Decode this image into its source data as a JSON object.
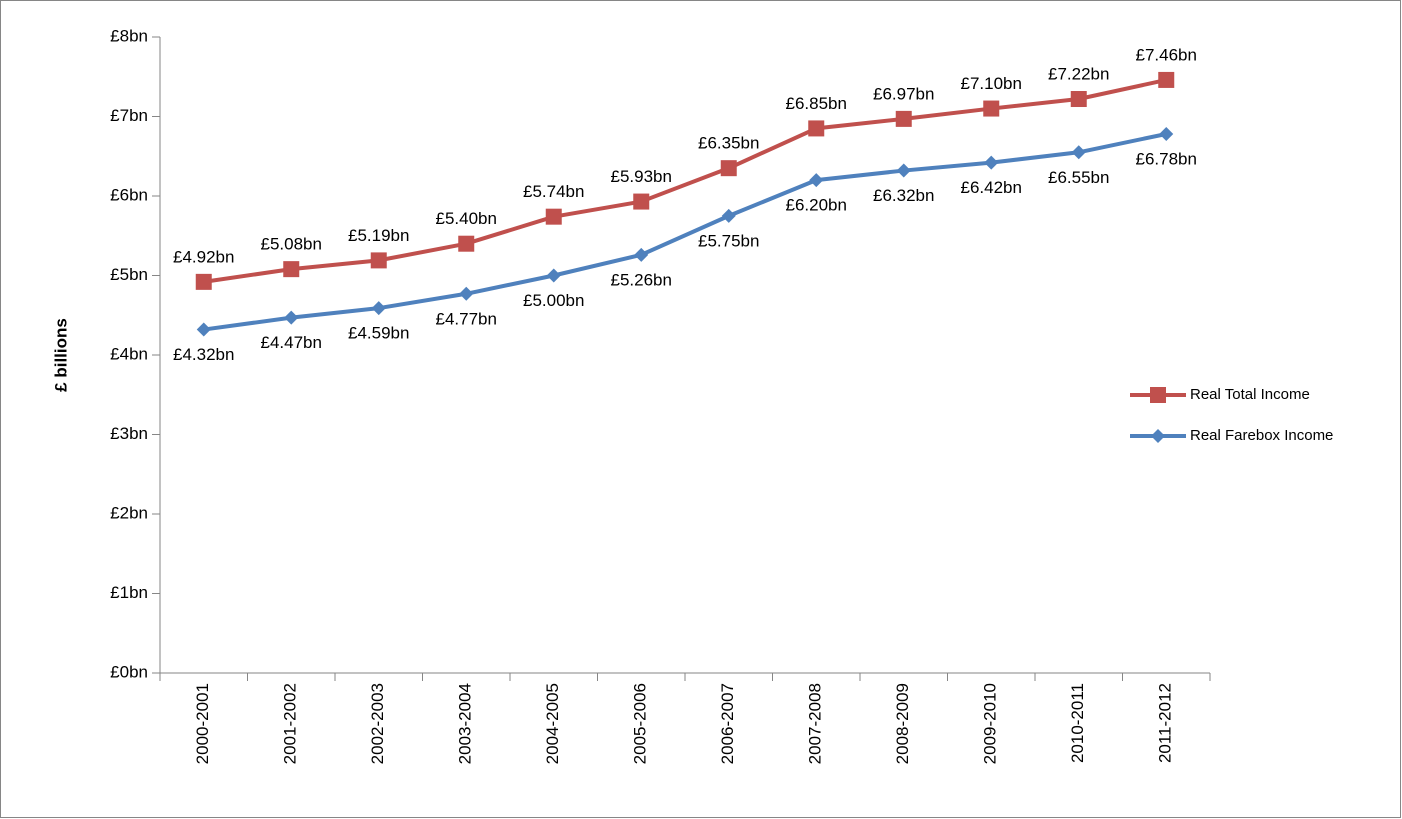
{
  "chart_data": {
    "type": "line",
    "y_label": "£ billions",
    "categories": [
      "2000-2001",
      "2001-2002",
      "2002-2003",
      "2003-2004",
      "2004-2005",
      "2005-2006",
      "2006-2007",
      "2007-2008",
      "2008-2009",
      "2009-2010",
      "2010-2011",
      "2011-2012"
    ],
    "series": [
      {
        "name": "Real Total Income",
        "color": "#c0504d",
        "marker": "square",
        "values": [
          4.92,
          5.08,
          5.19,
          5.4,
          5.74,
          5.93,
          6.35,
          6.85,
          6.97,
          7.1,
          7.22,
          7.46
        ],
        "value_labels": [
          "£4.92bn",
          "£5.08bn",
          "£5.19bn",
          "£5.40bn",
          "£5.74bn",
          "£5.93bn",
          "£6.35bn",
          "£6.85bn",
          "£6.97bn",
          "£7.10bn",
          "£7.22bn",
          "£7.46bn"
        ]
      },
      {
        "name": "Real Farebox Income",
        "color": "#4f81bd",
        "marker": "diamond",
        "values": [
          4.32,
          4.47,
          4.59,
          4.77,
          5.0,
          5.26,
          5.75,
          6.2,
          6.32,
          6.42,
          6.55,
          6.78
        ],
        "value_labels": [
          "£4.32bn",
          "£4.47bn",
          "£4.59bn",
          "£4.77bn",
          "£5.00bn",
          "£5.26bn",
          "£5.75bn",
          "£6.20bn",
          "£6.32bn",
          "£6.42bn",
          "£6.55bn",
          "£6.78bn"
        ]
      }
    ],
    "ylim": [
      0,
      8
    ],
    "yticks": [
      {
        "value": 0,
        "label": "£0bn"
      },
      {
        "value": 1,
        "label": "£1bn"
      },
      {
        "value": 2,
        "label": "£2bn"
      },
      {
        "value": 3,
        "label": "£3bn"
      },
      {
        "value": 4,
        "label": "£4bn"
      },
      {
        "value": 5,
        "label": "£5bn"
      },
      {
        "value": 6,
        "label": "£6bn"
      },
      {
        "value": 7,
        "label": "£7bn"
      },
      {
        "value": 8,
        "label": "£8bn"
      }
    ],
    "grid": false,
    "legend": "right"
  }
}
